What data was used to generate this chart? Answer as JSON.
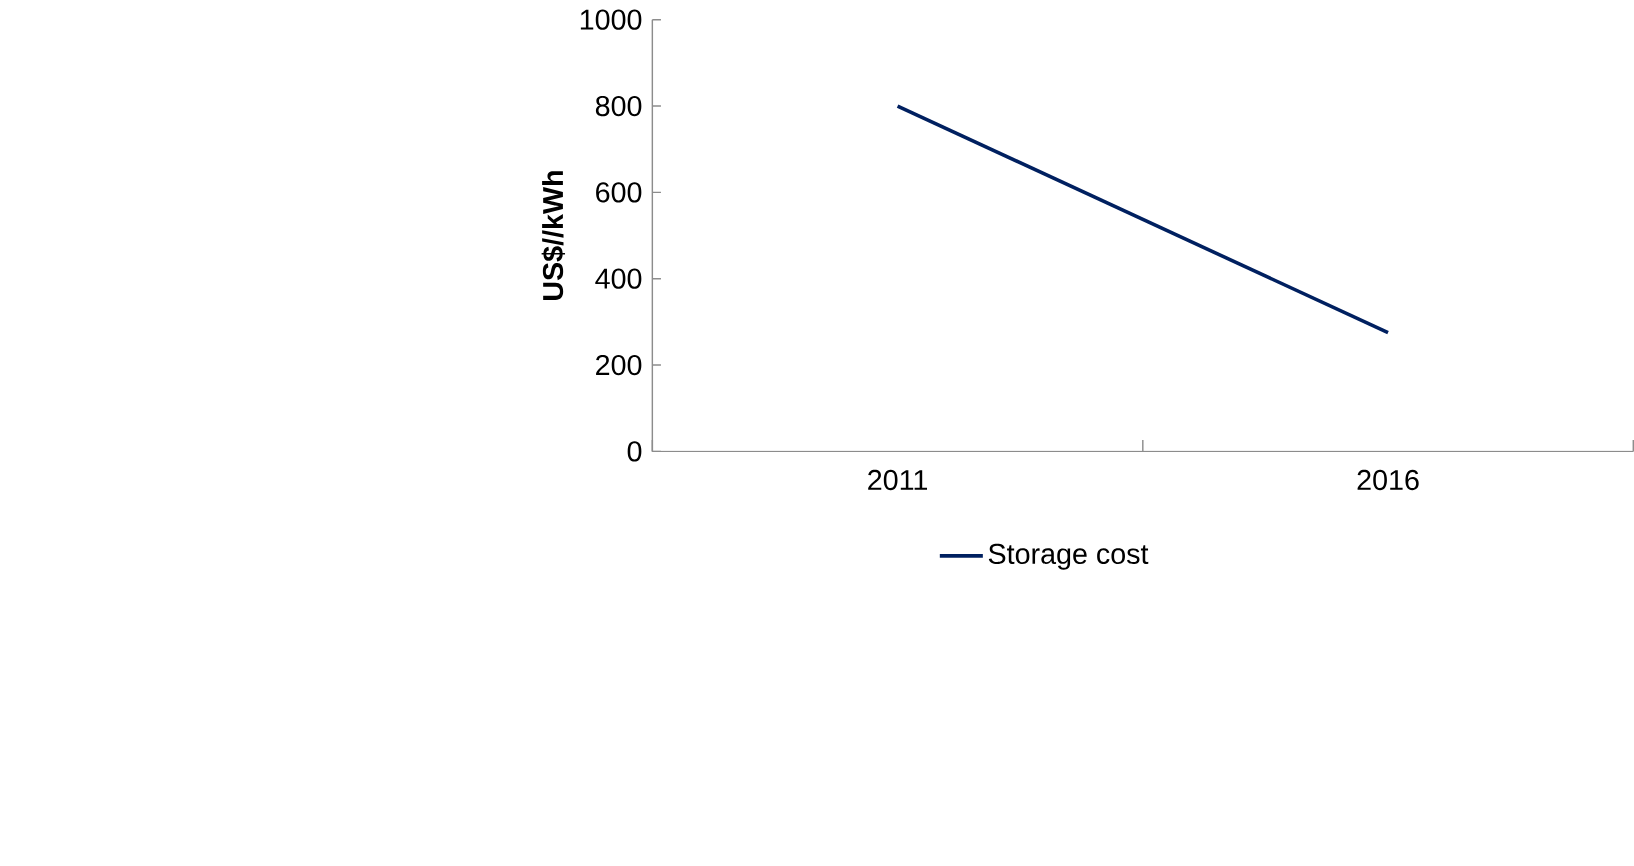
{
  "chart_data": {
    "type": "line",
    "ylabel": "US$//kWh",
    "categories": [
      "2011",
      "2016"
    ],
    "series": [
      {
        "name": "Storage cost",
        "color": "#002060",
        "values": [
          800,
          275
        ]
      }
    ],
    "ylim": [
      0,
      1000
    ],
    "yticks": [
      0,
      200,
      400,
      600,
      800,
      1000
    ],
    "grid": false,
    "legend": "bottom",
    "marker": "none",
    "line_style": "solid"
  }
}
